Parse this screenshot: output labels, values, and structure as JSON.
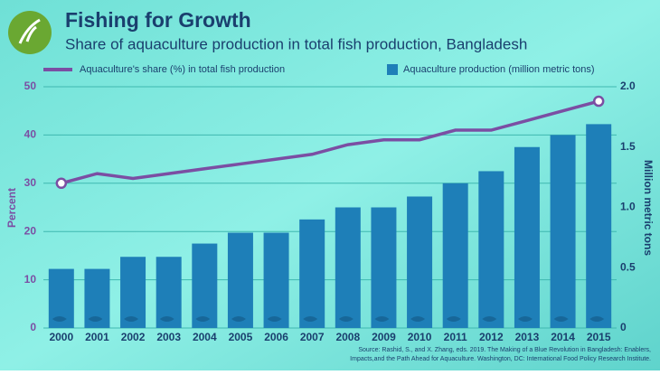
{
  "chart_data": {
    "type": "bar_line",
    "title": "Fishing for Growth",
    "subtitle": "Share of aquaculture production in total fish production, Bangladesh",
    "categories": [
      "2000",
      "2001",
      "2002",
      "2003",
      "2004",
      "2005",
      "2006",
      "2007",
      "2008",
      "2009",
      "2010",
      "2011",
      "2012",
      "2013",
      "2014",
      "2015"
    ],
    "series": [
      {
        "name": "Aquaculture's share (%) in total fish production",
        "type": "line",
        "color": "#7b4ea3",
        "values": [
          30,
          32,
          31,
          32,
          33,
          34,
          35,
          36,
          38,
          39,
          39,
          41,
          41,
          43,
          45,
          47
        ]
      },
      {
        "name": "Aquaculture production (million metric tons)",
        "type": "bar",
        "axis": "y2",
        "color": "#1e7fb8",
        "values": [
          0.49,
          0.49,
          0.59,
          0.59,
          0.7,
          0.79,
          0.79,
          0.9,
          1.0,
          1.0,
          1.09,
          1.2,
          1.3,
          1.5,
          1.6,
          1.69
        ]
      }
    ],
    "ylabel": "Percent",
    "y2label": "Million metric tons",
    "ylim": [
      0,
      50
    ],
    "yticks": [
      0,
      10,
      20,
      30,
      40,
      50
    ],
    "y2lim": [
      0,
      2
    ],
    "y2ticks": [
      0,
      0.5,
      {
        "value": 1,
        "label": "1.0"
      },
      1.5,
      {
        "value": 2,
        "label": "2.0"
      }
    ],
    "grid": true,
    "source": [
      "Source: Rashid, S., and X. Zhang, eds. 2019. The Making of a Blue Revolution in Bangladesh: Enablers,",
      "Impacts,and the Path Ahead for Aquaculture. Washington, DC: International Food Policy Research Institute."
    ]
  }
}
